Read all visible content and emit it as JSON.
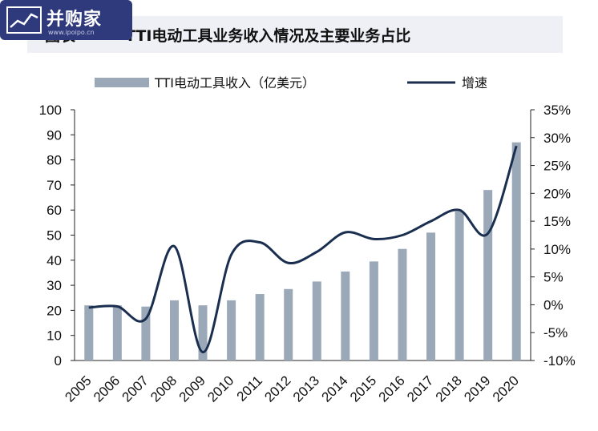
{
  "watermark": {
    "brand": "并购家",
    "url": "www.ipoipo.cn"
  },
  "header": {
    "prefix": "图表",
    "title": "TTI电动工具业务收入情况及主要业务占比"
  },
  "colors": {
    "bar": "#9aa8b8",
    "line": "#1a2e4f"
  },
  "chart_data": {
    "type": "bar+line",
    "categories": [
      "2005",
      "2006",
      "2007",
      "2008",
      "2009",
      "2010",
      "2011",
      "2012",
      "2013",
      "2014",
      "2015",
      "2016",
      "2017",
      "2018",
      "2019",
      "2020"
    ],
    "series": [
      {
        "name": "TTI电动工具收入（亿美元）",
        "type": "bar",
        "axis": "left",
        "values": [
          22,
          22,
          21.5,
          24,
          22,
          24,
          26.5,
          28.5,
          31.5,
          35.5,
          39.5,
          44.5,
          51,
          59.5,
          68,
          87
        ]
      },
      {
        "name": "增速",
        "type": "line",
        "axis": "right",
        "values": [
          -0.5,
          -0.3,
          -2.5,
          10.5,
          -8.5,
          9,
          11.2,
          7.5,
          9.5,
          13,
          11.8,
          12.5,
          15,
          17,
          12.8,
          28.5
        ]
      }
    ],
    "y_left": {
      "min": 0,
      "max": 100,
      "ticks": [
        "0",
        "10",
        "20",
        "30",
        "40",
        "50",
        "60",
        "70",
        "80",
        "90",
        "100"
      ]
    },
    "y_right": {
      "min": -10,
      "max": 35,
      "ticks": [
        "-10%",
        "-5%",
        "0%",
        "5%",
        "10%",
        "15%",
        "20%",
        "25%",
        "30%",
        "35%"
      ]
    },
    "grid": false,
    "legend": "top"
  }
}
